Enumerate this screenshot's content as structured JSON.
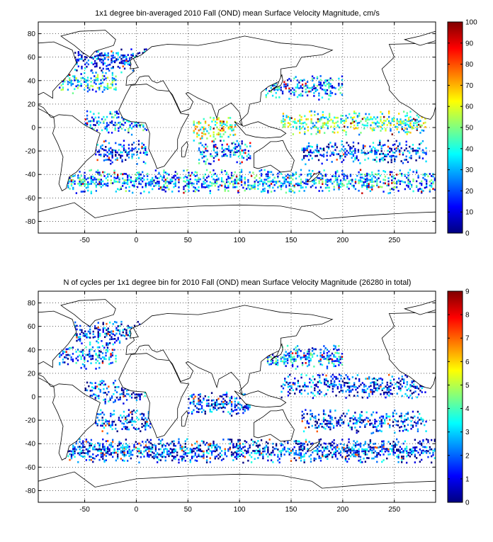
{
  "chart_data": [
    {
      "type": "heatmap",
      "title": "1x1 degree bin-averaged 2010 Fall (OND) mean Surface Velocity Magnitude, cm/s",
      "xlabel": "",
      "ylabel": "",
      "x_ticks": [
        -50,
        0,
        50,
        100,
        150,
        200,
        250
      ],
      "y_ticks": [
        80,
        60,
        40,
        20,
        0,
        -20,
        -40,
        -60,
        -80
      ],
      "xlim": [
        -95,
        290
      ],
      "ylim": [
        -90,
        90
      ],
      "grid": true,
      "colorbar": {
        "ticks": [
          0,
          10,
          20,
          30,
          40,
          50,
          60,
          70,
          80,
          90,
          100
        ],
        "range": [
          0,
          100
        ],
        "colormap": "jet"
      },
      "bands": [
        {
          "lat": 58,
          "lon_range": [
            -60,
            10
          ],
          "mean": 18,
          "density": 0.55
        },
        {
          "lat": 40,
          "lon_range": [
            -75,
            -20
          ],
          "mean": 35,
          "density": 0.5
        },
        {
          "lat": 35,
          "lon_range": [
            125,
            200
          ],
          "mean": 28,
          "density": 0.5
        },
        {
          "lat": 5,
          "lon_range": [
            -50,
            10
          ],
          "mean": 28,
          "density": 0.5
        },
        {
          "lat": 0,
          "lon_range": [
            55,
            95
          ],
          "mean": 55,
          "density": 0.55
        },
        {
          "lat": 5,
          "lon_range": [
            140,
            280
          ],
          "mean": 45,
          "density": 0.5
        },
        {
          "lat": -20,
          "lon_range": [
            -40,
            10
          ],
          "mean": 18,
          "density": 0.45
        },
        {
          "lat": -20,
          "lon_range": [
            60,
            110
          ],
          "mean": 25,
          "density": 0.5
        },
        {
          "lat": -20,
          "lon_range": [
            160,
            280
          ],
          "mean": 18,
          "density": 0.45
        },
        {
          "lat": -45,
          "lon_range": [
            -70,
            290
          ],
          "mean": 30,
          "density": 0.55
        }
      ]
    },
    {
      "type": "heatmap",
      "title": "N of cycles per 1x1 degree bin for 2010 Fall (OND) mean Surface Velocity Magnitude (26280 in total)",
      "xlabel": "",
      "ylabel": "",
      "x_ticks": [
        -50,
        0,
        50,
        100,
        150,
        200,
        250
      ],
      "y_ticks": [
        80,
        60,
        40,
        20,
        0,
        -20,
        -40,
        -60,
        -80
      ],
      "xlim": [
        -95,
        290
      ],
      "ylim": [
        -90,
        90
      ],
      "grid": true,
      "colorbar": {
        "ticks": [
          0,
          1,
          2,
          3,
          4,
          5,
          6,
          7,
          8,
          9
        ],
        "range": [
          0,
          9
        ],
        "colormap": "jet"
      },
      "bands": [
        {
          "lat": 55,
          "lon_range": [
            -60,
            10
          ],
          "mean": 1.5,
          "density": 0.55
        },
        {
          "lat": 35,
          "lon_range": [
            -75,
            -20
          ],
          "mean": 2,
          "density": 0.5
        },
        {
          "lat": 35,
          "lon_range": [
            125,
            200
          ],
          "mean": 2.5,
          "density": 0.55
        },
        {
          "lat": 5,
          "lon_range": [
            -50,
            10
          ],
          "mean": 1.5,
          "density": 0.45
        },
        {
          "lat": -5,
          "lon_range": [
            50,
            110
          ],
          "mean": 1.5,
          "density": 0.5
        },
        {
          "lat": 10,
          "lon_range": [
            140,
            280
          ],
          "mean": 1.5,
          "density": 0.5
        },
        {
          "lat": -20,
          "lon_range": [
            -40,
            20
          ],
          "mean": 1.5,
          "density": 0.45
        },
        {
          "lat": -20,
          "lon_range": [
            160,
            280
          ],
          "mean": 1.5,
          "density": 0.45
        },
        {
          "lat": -45,
          "lon_range": [
            -70,
            290
          ],
          "mean": 1.5,
          "density": 0.6
        }
      ]
    }
  ]
}
